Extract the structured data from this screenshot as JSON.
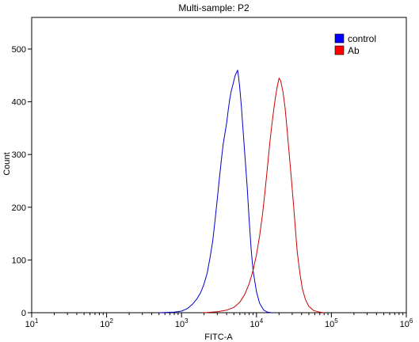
{
  "chart_data": {
    "type": "line",
    "title": "Multi-sample: P2",
    "xlabel": "FITC-A",
    "ylabel": "Count",
    "x_scale": "log",
    "xlim": [
      10,
      1000000
    ],
    "ylim": [
      0,
      560
    ],
    "x_ticks": [
      {
        "base": "10",
        "exp": "1",
        "value": 10
      },
      {
        "base": "10",
        "exp": "2",
        "value": 100
      },
      {
        "base": "10",
        "exp": "3",
        "value": 1000
      },
      {
        "base": "10",
        "exp": "4",
        "value": 10000
      },
      {
        "base": "10",
        "exp": "5",
        "value": 100000
      },
      {
        "base": "10",
        "exp": "6",
        "value": 1000000
      }
    ],
    "y_ticks": [
      "0",
      "100",
      "200",
      "300",
      "400",
      "500"
    ],
    "grid": false,
    "legend_position": "top-right",
    "series": [
      {
        "name": "control",
        "color": "#0000cc",
        "legend_color": "#0000ff",
        "points": [
          [
            500,
            0
          ],
          [
            800,
            1
          ],
          [
            1000,
            3
          ],
          [
            1200,
            8
          ],
          [
            1400,
            16
          ],
          [
            1600,
            26
          ],
          [
            1800,
            38
          ],
          [
            2000,
            55
          ],
          [
            2200,
            75
          ],
          [
            2400,
            105
          ],
          [
            2600,
            135
          ],
          [
            2800,
            175
          ],
          [
            3000,
            215
          ],
          [
            3200,
            255
          ],
          [
            3400,
            290
          ],
          [
            3600,
            320
          ],
          [
            3800,
            340
          ],
          [
            4000,
            360
          ],
          [
            4200,
            385
          ],
          [
            4400,
            405
          ],
          [
            4600,
            420
          ],
          [
            4800,
            430
          ],
          [
            5000,
            440
          ],
          [
            5200,
            450
          ],
          [
            5400,
            455
          ],
          [
            5600,
            460
          ],
          [
            5800,
            445
          ],
          [
            6000,
            425
          ],
          [
            6300,
            390
          ],
          [
            6600,
            350
          ],
          [
            7000,
            300
          ],
          [
            7500,
            240
          ],
          [
            8000,
            175
          ],
          [
            8500,
            120
          ],
          [
            9000,
            80
          ],
          [
            10000,
            40
          ],
          [
            11000,
            18
          ],
          [
            12500,
            5
          ],
          [
            14000,
            1
          ],
          [
            16000,
            0
          ]
        ]
      },
      {
        "name": "Ab",
        "color": "#cc0000",
        "legend_color": "#ff0000",
        "points": [
          [
            2000,
            0
          ],
          [
            3000,
            2
          ],
          [
            4000,
            5
          ],
          [
            5000,
            10
          ],
          [
            6000,
            20
          ],
          [
            7000,
            35
          ],
          [
            8000,
            55
          ],
          [
            9000,
            80
          ],
          [
            10000,
            110
          ],
          [
            11000,
            145
          ],
          [
            12000,
            185
          ],
          [
            13000,
            230
          ],
          [
            14000,
            275
          ],
          [
            15000,
            320
          ],
          [
            16000,
            355
          ],
          [
            17000,
            385
          ],
          [
            18000,
            410
          ],
          [
            19000,
            430
          ],
          [
            20000,
            445
          ],
          [
            21000,
            440
          ],
          [
            22500,
            420
          ],
          [
            24000,
            390
          ],
          [
            25500,
            350
          ],
          [
            27000,
            310
          ],
          [
            29000,
            260
          ],
          [
            31000,
            210
          ],
          [
            33000,
            160
          ],
          [
            35000,
            115
          ],
          [
            38000,
            75
          ],
          [
            41000,
            45
          ],
          [
            45000,
            25
          ],
          [
            50000,
            12
          ],
          [
            58000,
            4
          ],
          [
            70000,
            1
          ],
          [
            80000,
            0
          ]
        ]
      }
    ]
  }
}
